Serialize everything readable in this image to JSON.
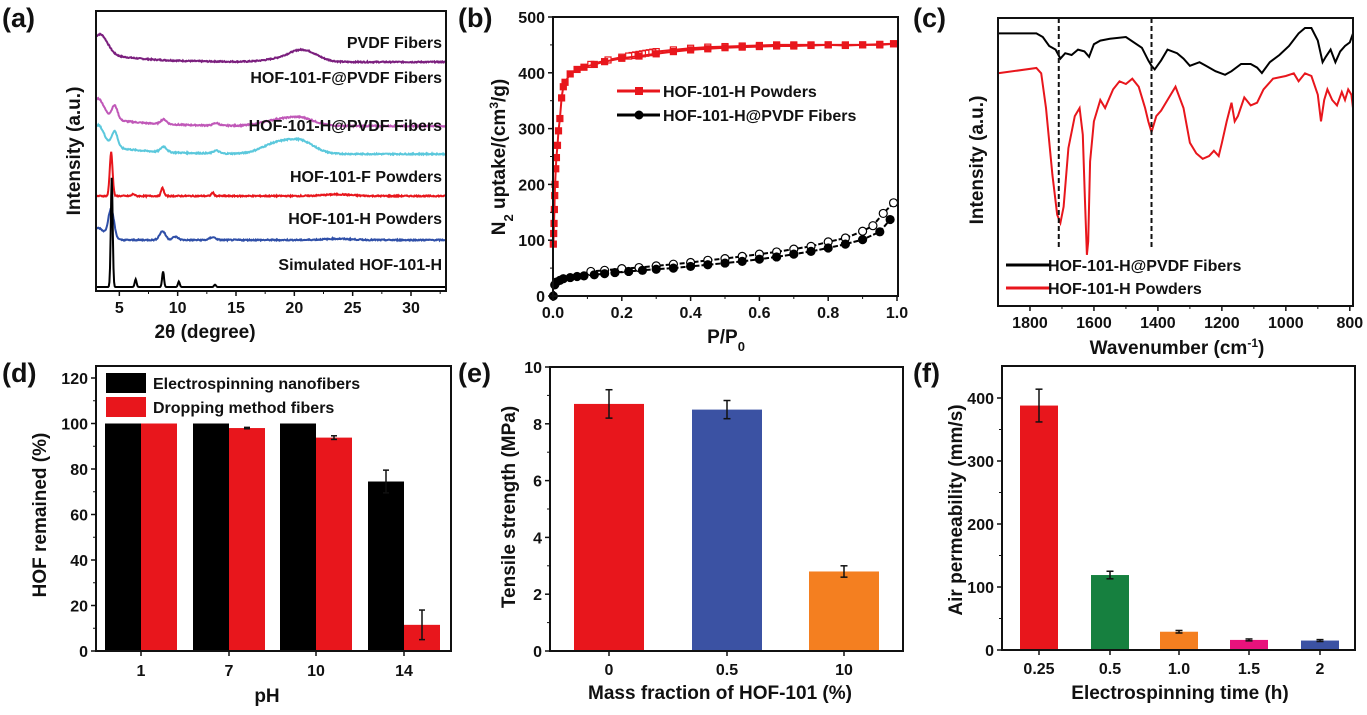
{
  "figure": {
    "panel_labels": [
      "(a)",
      "(b)",
      "(c)",
      "(d)",
      "(e)",
      "(f)"
    ]
  },
  "chart_data": [
    {
      "id": "a",
      "type": "line",
      "title": "",
      "xlabel": "2θ (degree)",
      "ylabel": "Intensity (a.u.)",
      "xlim": [
        3,
        33
      ],
      "xticks": [
        5,
        10,
        15,
        20,
        25,
        30
      ],
      "yticks": [],
      "grid": false,
      "legend": "inline-right",
      "series": [
        {
          "name": "PVDF Fibers",
          "color": "#7b1f7e",
          "offset": 5,
          "peaks": [
            [
              3.2,
              0.35
            ],
            [
              3.8,
              0.2
            ],
            [
              20.7,
              0.3
            ],
            [
              18.3,
              0.05
            ]
          ]
        },
        {
          "name": "HOF-101-F@PVDF Fibers",
          "color": "#c058b8",
          "offset": 4,
          "peaks": [
            [
              3.2,
              0.45
            ],
            [
              4.6,
              0.35
            ],
            [
              8.8,
              0.12
            ],
            [
              13.3,
              0.06
            ],
            [
              18.3,
              0.12
            ],
            [
              20.5,
              0.2
            ]
          ]
        },
        {
          "name": "HOF-101-H@PVDF Fibers",
          "color": "#5bc8dc",
          "offset": 3,
          "peaks": [
            [
              3.2,
              0.45
            ],
            [
              4.6,
              0.38
            ],
            [
              8.8,
              0.13
            ],
            [
              13.3,
              0.07
            ],
            [
              18.3,
              0.22
            ],
            [
              20.5,
              0.3
            ]
          ]
        },
        {
          "name": "HOF-101-F Powders",
          "color": "#e8161c",
          "offset": 2,
          "peaks": [
            [
              4.3,
              1.1
            ],
            [
              6.2,
              0.05
            ],
            [
              8.7,
              0.2
            ],
            [
              13.0,
              0.08
            ],
            [
              23.7,
              0.04
            ]
          ]
        },
        {
          "name": "HOF-101-H Powders",
          "color": "#2f4fa8",
          "offset": 1,
          "peaks": [
            [
              3.2,
              0.3
            ],
            [
              4.3,
              0.75
            ],
            [
              8.7,
              0.22
            ],
            [
              9.8,
              0.08
            ],
            [
              13.0,
              0.07
            ],
            [
              23.7,
              0.03
            ]
          ]
        },
        {
          "name": "Simulated HOF-101-H",
          "color": "#000000",
          "offset": 0,
          "peaks": [
            [
              4.35,
              1.4
            ],
            [
              6.4,
              0.1
            ],
            [
              8.75,
              0.2
            ],
            [
              10.1,
              0.07
            ],
            [
              13.2,
              0.03
            ]
          ]
        }
      ]
    },
    {
      "id": "b",
      "type": "line",
      "title": "",
      "xlabel": "P/P0",
      "ylabel": "N2 uptake/(cm3/g)",
      "xlim": [
        0,
        1.0
      ],
      "ylim": [
        0,
        500
      ],
      "xticks": [
        "0.0",
        "0.2",
        "0.4",
        "0.6",
        "0.8",
        "1.0"
      ],
      "yticks": [
        0,
        100,
        200,
        300,
        400,
        500
      ],
      "grid": false,
      "legend": "center-right",
      "series": [
        {
          "name": "HOF-101-H Powders",
          "color": "#e8161c",
          "adsorption": {
            "x": [
              0.001,
              0.002,
              0.003,
              0.004,
              0.005,
              0.006,
              0.008,
              0.01,
              0.013,
              0.016,
              0.02,
              0.025,
              0.03,
              0.035,
              0.05,
              0.07,
              0.09,
              0.12,
              0.15,
              0.2,
              0.25,
              0.3,
              0.35,
              0.4,
              0.45,
              0.5,
              0.55,
              0.6,
              0.65,
              0.7,
              0.75,
              0.8,
              0.85,
              0.9,
              0.95,
              0.99
            ],
            "y": [
              93,
              112,
              130,
              155,
              180,
              200,
              228,
              248,
              270,
              296,
              318,
              355,
              375,
              383,
              398,
              406,
              410,
              415,
              420,
              426,
              430,
              434,
              438,
              441,
              443,
              445,
              446,
              447,
              448,
              448,
              449,
              450,
              449,
              450,
              450,
              452
            ]
          },
          "desorption": {
            "x": [
              0.99,
              0.95,
              0.9,
              0.85,
              0.8,
              0.75,
              0.7,
              0.65,
              0.6,
              0.55,
              0.5,
              0.45,
              0.4,
              0.35,
              0.3,
              0.29,
              0.28,
              0.27,
              0.26,
              0.25,
              0.24,
              0.23,
              0.22,
              0.2,
              0.16,
              0.11
            ],
            "y": [
              452,
              451,
              450,
              450,
              450,
              450,
              450,
              450,
              449,
              448,
              447,
              446,
              444,
              441,
              438,
              437,
              436,
              435,
              434,
              433,
              432,
              431,
              430,
              428,
              423,
              415
            ]
          }
        },
        {
          "name": "HOF-101-H@PVDF Fibers",
          "color": "#000000",
          "adsorption": {
            "x": [
              0.001,
              0.005,
              0.01,
              0.02,
              0.03,
              0.05,
              0.07,
              0.09,
              0.12,
              0.15,
              0.18,
              0.22,
              0.26,
              0.3,
              0.35,
              0.4,
              0.45,
              0.5,
              0.55,
              0.6,
              0.65,
              0.7,
              0.75,
              0.8,
              0.85,
              0.9,
              0.95,
              0.98
            ],
            "y": [
              0,
              20,
              25,
              28,
              31,
              33,
              35,
              36,
              38,
              40,
              42,
              44,
              46,
              48,
              50,
              53,
              56,
              59,
              62,
              66,
              70,
              75,
              80,
              86,
              93,
              101,
              115,
              137
            ]
          },
          "desorption": {
            "x": [
              0.99,
              0.96,
              0.93,
              0.9,
              0.85,
              0.8,
              0.75,
              0.7,
              0.65,
              0.6,
              0.55,
              0.5,
              0.45,
              0.4,
              0.35,
              0.3,
              0.25,
              0.2,
              0.15,
              0.11
            ],
            "y": [
              167,
              148,
              126,
              116,
              104,
              97,
              89,
              84,
              79,
              75,
              71,
              67,
              64,
              60,
              57,
              54,
              51,
              49,
              46,
              44
            ]
          }
        }
      ]
    },
    {
      "id": "c",
      "type": "line",
      "title": "",
      "xlabel": "Wavenumber (cm-1)",
      "ylabel": "Intensity (a.u.)",
      "xlim": [
        1900,
        790
      ],
      "xticks": [
        1800,
        1600,
        1400,
        1200,
        1000,
        800
      ],
      "reference_lines": [
        1710,
        1420
      ],
      "grid": false,
      "legend": "bottom-left",
      "series": [
        {
          "name": "HOF-101-H@PVDF Fibers",
          "color": "#000000",
          "x": [
            1900,
            1780,
            1760,
            1740,
            1720,
            1705,
            1690,
            1670,
            1650,
            1630,
            1615,
            1600,
            1580,
            1550,
            1500,
            1450,
            1430,
            1420,
            1410,
            1390,
            1370,
            1340,
            1320,
            1300,
            1270,
            1250,
            1220,
            1190,
            1170,
            1140,
            1110,
            1090,
            1075,
            1050,
            1020,
            990,
            960,
            940,
            920,
            900,
            885,
            875,
            860,
            845,
            830,
            815,
            800,
            790
          ],
          "y": [
            0.92,
            0.92,
            0.9,
            0.85,
            0.83,
            0.78,
            0.81,
            0.8,
            0.83,
            0.82,
            0.79,
            0.86,
            0.88,
            0.89,
            0.9,
            0.84,
            0.77,
            0.74,
            0.72,
            0.77,
            0.83,
            0.81,
            0.78,
            0.74,
            0.76,
            0.74,
            0.71,
            0.69,
            0.71,
            0.75,
            0.75,
            0.73,
            0.7,
            0.76,
            0.8,
            0.85,
            0.92,
            0.95,
            0.95,
            0.88,
            0.76,
            0.79,
            0.83,
            0.76,
            0.82,
            0.85,
            0.87,
            0.92
          ]
        },
        {
          "name": "HOF-101-H Powders",
          "color": "#e8161c",
          "x": [
            1900,
            1780,
            1765,
            1750,
            1730,
            1715,
            1705,
            1695,
            1680,
            1660,
            1645,
            1635,
            1628,
            1622,
            1618,
            1612,
            1600,
            1580,
            1565,
            1540,
            1520,
            1500,
            1480,
            1460,
            1440,
            1430,
            1420,
            1405,
            1390,
            1370,
            1345,
            1320,
            1300,
            1280,
            1260,
            1240,
            1225,
            1210,
            1200,
            1185,
            1170,
            1160,
            1150,
            1130,
            1110,
            1090,
            1070,
            1040,
            1000,
            975,
            960,
            940,
            920,
            900,
            890,
            880,
            870,
            855,
            840,
            825,
            815,
            805,
            795,
            790
          ],
          "y": [
            0.68,
            0.7,
            0.68,
            0.55,
            0.3,
            0.15,
            0.12,
            0.18,
            0.4,
            0.52,
            0.55,
            0.45,
            0.2,
            0.0,
            0.05,
            0.35,
            0.5,
            0.58,
            0.55,
            0.62,
            0.65,
            0.64,
            0.66,
            0.63,
            0.55,
            0.5,
            0.46,
            0.52,
            0.54,
            0.58,
            0.63,
            0.55,
            0.42,
            0.38,
            0.36,
            0.37,
            0.39,
            0.37,
            0.42,
            0.5,
            0.57,
            0.5,
            0.52,
            0.59,
            0.56,
            0.57,
            0.62,
            0.66,
            0.67,
            0.68,
            0.65,
            0.68,
            0.67,
            0.6,
            0.5,
            0.58,
            0.62,
            0.58,
            0.56,
            0.61,
            0.58,
            0.62,
            0.6,
            0.55
          ]
        }
      ]
    },
    {
      "id": "d",
      "type": "bar",
      "title": "",
      "xlabel": "pH",
      "ylabel": "HOF remained (%)",
      "ylim": [
        0,
        120
      ],
      "yticks": [
        0,
        20,
        40,
        60,
        80,
        100,
        120
      ],
      "categories": [
        "1",
        "7",
        "10",
        "14"
      ],
      "grid": false,
      "legend": "top-left",
      "series": [
        {
          "name": "Electrospinning nanofibers",
          "color": "#000000",
          "values": [
            100,
            100,
            100,
            74.5
          ],
          "errors": [
            0,
            0,
            0,
            5
          ]
        },
        {
          "name": "Dropping method fibers",
          "color": "#e8161c",
          "values": [
            100,
            98,
            93.8,
            11.5
          ],
          "errors": [
            0,
            0.3,
            0.8,
            6.5
          ]
        }
      ]
    },
    {
      "id": "e",
      "type": "bar",
      "title": "",
      "xlabel": "Mass fraction of HOF-101 (%)",
      "ylabel": "Tensile strength (MPa)",
      "ylim": [
        0,
        10
      ],
      "yticks": [
        0,
        2,
        4,
        6,
        8,
        10
      ],
      "categories": [
        "0",
        "0.5",
        "10"
      ],
      "values": [
        8.7,
        8.5,
        2.8
      ],
      "errors": [
        0.5,
        0.32,
        0.2
      ],
      "colors": [
        "#e8161c",
        "#3b52a3",
        "#f47f20"
      ],
      "grid": false
    },
    {
      "id": "f",
      "type": "bar",
      "title": "",
      "xlabel": "Electrospinning time (h)",
      "ylabel": "Air permeability (mm/s)",
      "ylim": [
        0,
        450
      ],
      "yticks": [
        0,
        100,
        200,
        300,
        400
      ],
      "categories": [
        "0.25",
        "0.5",
        "1.0",
        "1.5",
        "2"
      ],
      "values": [
        388,
        119,
        29,
        16,
        15
      ],
      "errors": [
        26,
        6,
        2,
        1.5,
        1.5
      ],
      "colors": [
        "#e8161c",
        "#16803f",
        "#f47f20",
        "#e8127c",
        "#3b52a3"
      ],
      "grid": false
    }
  ]
}
